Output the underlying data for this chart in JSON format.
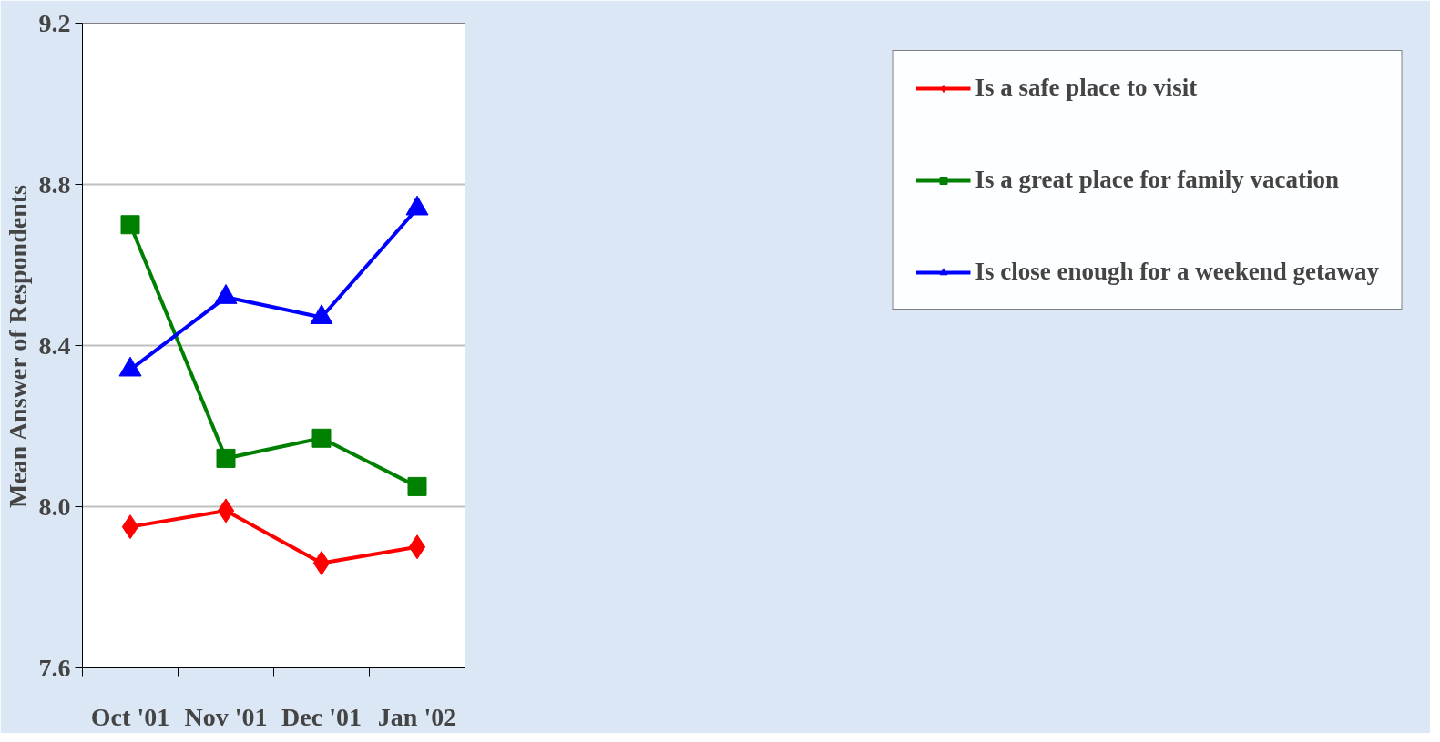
{
  "chart_data": {
    "type": "line",
    "ylabel": "Mean Answer of Respondents",
    "categories": [
      "Oct '01",
      "Nov '01",
      "Dec '01",
      "Jan '02"
    ],
    "series": [
      {
        "name": "Is a safe place to visit",
        "color": "#ff0000",
        "marker": "diamond",
        "values": [
          7.95,
          7.99,
          7.86,
          7.9
        ]
      },
      {
        "name": "Is a great place for family vacation",
        "color": "#008000",
        "marker": "square",
        "values": [
          8.7,
          8.12,
          8.17,
          8.05
        ]
      },
      {
        "name": "Is close enough for a weekend getaway",
        "color": "#0000ff",
        "marker": "triangle",
        "values": [
          8.34,
          8.52,
          8.47,
          8.74
        ]
      }
    ],
    "ylim": [
      7.6,
      9.2
    ],
    "yticks": [
      {
        "value": 7.6,
        "label": "7.6"
      },
      {
        "value": 8.0,
        "label": "8.0"
      },
      {
        "value": 8.4,
        "label": "8.4"
      },
      {
        "value": 8.8,
        "label": "8.8"
      },
      {
        "value": 9.2,
        "label": "9.2"
      }
    ],
    "grid": "y",
    "legend": "right",
    "line_style": "solid"
  }
}
